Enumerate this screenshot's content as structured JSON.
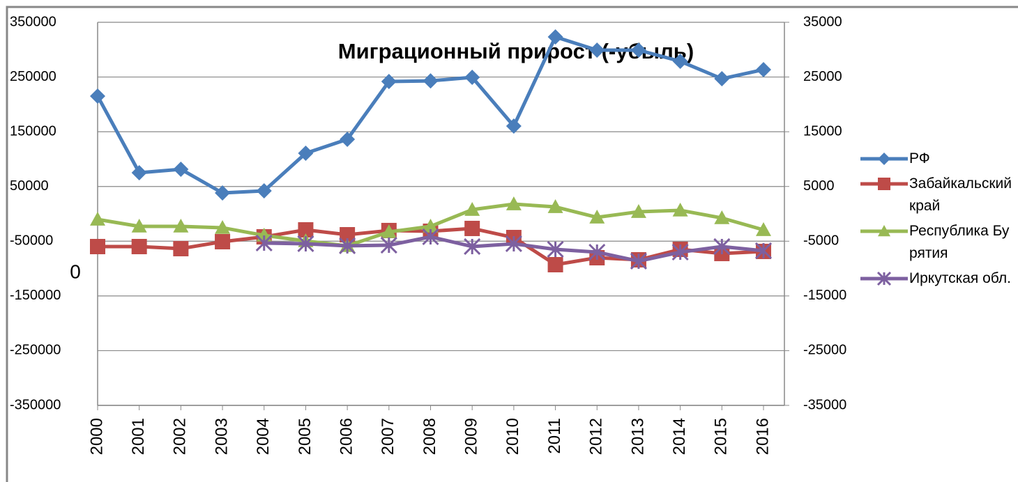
{
  "chart_data": {
    "type": "line",
    "title": "Миграционный прирост (-убыль)",
    "annotations": [
      "0"
    ],
    "categories": [
      "2000",
      "2001",
      "2002",
      "2003",
      "2004",
      "2005",
      "2006",
      "2007",
      "2008",
      "2009",
      "2010",
      "2011",
      "2012",
      "2013",
      "2014",
      "2015",
      "2016"
    ],
    "ylim": [
      -350000,
      350000
    ],
    "yticks": [
      -350000,
      -250000,
      -150000,
      -50000,
      50000,
      150000,
      250000,
      350000
    ],
    "y2lim": [
      -35000,
      35000
    ],
    "y2ticks": [
      -35000,
      -25000,
      -15000,
      -5000,
      5000,
      15000,
      25000,
      35000
    ],
    "grid": true,
    "legend": "right",
    "series": [
      {
        "name": "РФ",
        "color": "#4a7ebb",
        "marker": "diamond",
        "values": [
          215100,
          75100,
          81500,
          38200,
          42000,
          110700,
          136200,
          241800,
          243000,
          249500,
          160400,
          323300,
          299100,
          299100,
          278700,
          246900,
          263500
        ]
      },
      {
        "name": "Забайкальский край",
        "color": "#be4b48",
        "marker": "square",
        "axis": "y2",
        "values": [
          -5980,
          -5980,
          -6360,
          -5090,
          -4200,
          -2930,
          -3820,
          -3050,
          -3180,
          -2670,
          -4330,
          -9290,
          -8020,
          -8400,
          -6490,
          -7250,
          -6870
        ]
      },
      {
        "name": "Республика Бурятия",
        "color": "#98b954",
        "marker": "triangle",
        "axis": "y2",
        "values": [
          -1020,
          -2290,
          -2290,
          -2540,
          -3940,
          -4960,
          -5850,
          -3310,
          -2290,
          760,
          1780,
          1270,
          -640,
          380,
          640,
          -760,
          -2930
        ]
      },
      {
        "name": "Иркутская обл.",
        "color": "#7d60a0",
        "marker": "x",
        "axis": "y2",
        "values": [
          null,
          null,
          null,
          null,
          -5340,
          -5470,
          -5850,
          -5730,
          -4200,
          -5980,
          -5470,
          -6490,
          -7000,
          -8650,
          -7000,
          -5980,
          -6740
        ]
      }
    ]
  }
}
